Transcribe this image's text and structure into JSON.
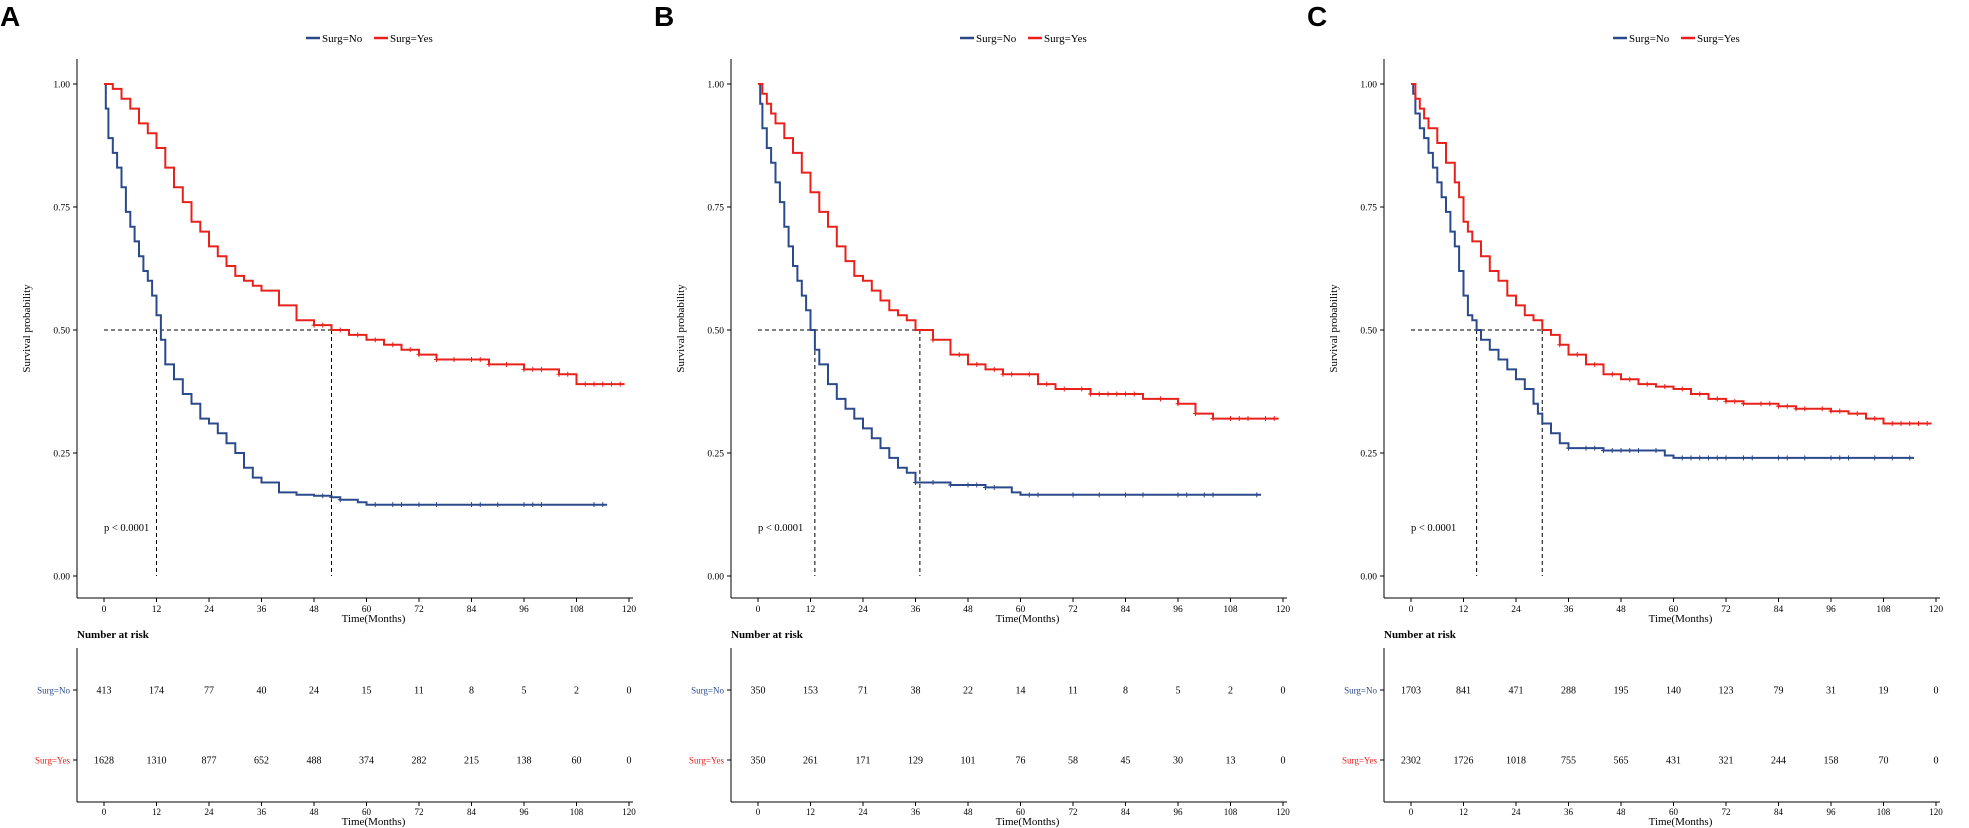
{
  "colors": {
    "no": "#2b4a8b",
    "yes": "#e8221b",
    "axis": "#000000",
    "guide": "#000000"
  },
  "shared": {
    "series_names": [
      "Surg=No",
      "Surg=Yes"
    ],
    "y_label": "Survival probability",
    "x_label": "Time(Months)",
    "y_ticks": [
      "0.00",
      "0.25",
      "0.50",
      "0.75",
      "1.00"
    ],
    "x_ticks": [
      "0",
      "12",
      "24",
      "36",
      "48",
      "60",
      "72",
      "84",
      "96",
      "108",
      "120"
    ],
    "risk_title": "Number at risk"
  },
  "chart_data": [
    {
      "panel": "A",
      "type": "line",
      "title": "",
      "xlabel": "Time(Months)",
      "ylabel": "Survival probability",
      "xlim": [
        0,
        120
      ],
      "ylim": [
        0,
        1
      ],
      "p_value": "p < 0.0001",
      "median_times": [
        12,
        52
      ],
      "series": [
        {
          "name": "Surg=No",
          "x": [
            0,
            0.4,
            1,
            2,
            3,
            4,
            5,
            6,
            7,
            8,
            9,
            10,
            11,
            12,
            13,
            14,
            16,
            18,
            20,
            22,
            24,
            26,
            28,
            30,
            32,
            34,
            36,
            40,
            44,
            48,
            52,
            54,
            58,
            60,
            70,
            80,
            90,
            100,
            110,
            115
          ],
          "y": [
            1,
            0.95,
            0.89,
            0.86,
            0.83,
            0.79,
            0.74,
            0.71,
            0.68,
            0.65,
            0.62,
            0.6,
            0.57,
            0.53,
            0.48,
            0.43,
            0.4,
            0.37,
            0.35,
            0.32,
            0.31,
            0.29,
            0.27,
            0.25,
            0.22,
            0.2,
            0.19,
            0.17,
            0.165,
            0.163,
            0.16,
            0.155,
            0.15,
            0.145,
            0.145,
            0.145,
            0.145,
            0.145,
            0.145,
            0.145
          ],
          "censor_x": [
            50,
            52,
            54,
            62,
            66,
            68,
            72,
            76,
            84,
            86,
            90,
            96,
            98,
            100,
            112,
            114
          ]
        },
        {
          "name": "Surg=Yes",
          "x": [
            0,
            2,
            4,
            6,
            8,
            10,
            12,
            14,
            16,
            18,
            20,
            22,
            24,
            26,
            28,
            30,
            32,
            34,
            36,
            40,
            44,
            48,
            52,
            56,
            60,
            64,
            68,
            72,
            76,
            80,
            84,
            88,
            92,
            96,
            100,
            104,
            108,
            112,
            116,
            119
          ],
          "y": [
            1,
            0.99,
            0.97,
            0.95,
            0.92,
            0.9,
            0.87,
            0.83,
            0.79,
            0.76,
            0.72,
            0.7,
            0.67,
            0.65,
            0.63,
            0.61,
            0.6,
            0.59,
            0.58,
            0.55,
            0.52,
            0.51,
            0.5,
            0.49,
            0.48,
            0.47,
            0.46,
            0.45,
            0.44,
            0.44,
            0.44,
            0.43,
            0.43,
            0.42,
            0.42,
            0.41,
            0.39,
            0.39,
            0.39,
            0.39
          ],
          "censor_x": [
            48,
            50,
            54,
            58,
            62,
            66,
            70,
            72,
            76,
            80,
            84,
            86,
            88,
            92,
            96,
            98,
            100,
            104,
            106,
            110,
            112,
            114,
            116,
            118
          ]
        }
      ],
      "risk_rows": [
        {
          "label": "Surg=No",
          "values": [
            "413",
            "174",
            "77",
            "40",
            "24",
            "15",
            "11",
            "8",
            "5",
            "2",
            "0"
          ]
        },
        {
          "label": "Surg=Yes",
          "values": [
            "1628",
            "1310",
            "877",
            "652",
            "488",
            "374",
            "282",
            "215",
            "138",
            "60",
            "0"
          ]
        }
      ]
    },
    {
      "panel": "B",
      "type": "line",
      "title": "",
      "xlabel": "Time(Months)",
      "ylabel": "Survival probability",
      "xlim": [
        0,
        120
      ],
      "ylim": [
        0,
        1
      ],
      "p_value": "p < 0.0001",
      "median_times": [
        13,
        37
      ],
      "series": [
        {
          "name": "Surg=No",
          "x": [
            0,
            0.5,
            1,
            2,
            3,
            4,
            5,
            6,
            7,
            8,
            9,
            10,
            11,
            12,
            13,
            14,
            16,
            18,
            20,
            22,
            24,
            26,
            28,
            30,
            32,
            34,
            36,
            40,
            44,
            48,
            52,
            56,
            58,
            60,
            70,
            80,
            90,
            100,
            110,
            115
          ],
          "y": [
            1,
            0.96,
            0.91,
            0.87,
            0.84,
            0.8,
            0.76,
            0.71,
            0.67,
            0.63,
            0.6,
            0.57,
            0.54,
            0.5,
            0.46,
            0.43,
            0.39,
            0.36,
            0.34,
            0.32,
            0.3,
            0.28,
            0.26,
            0.24,
            0.22,
            0.21,
            0.19,
            0.19,
            0.185,
            0.185,
            0.18,
            0.18,
            0.17,
            0.165,
            0.165,
            0.165,
            0.165,
            0.165,
            0.165,
            0.165
          ],
          "censor_x": [
            36,
            40,
            44,
            48,
            50,
            52,
            54,
            62,
            64,
            72,
            78,
            84,
            88,
            96,
            98,
            102,
            104,
            114
          ]
        },
        {
          "name": "Surg=Yes",
          "x": [
            0,
            1,
            2,
            3,
            4,
            6,
            8,
            10,
            12,
            14,
            16,
            18,
            20,
            22,
            24,
            26,
            28,
            30,
            32,
            34,
            36,
            40,
            44,
            48,
            52,
            56,
            60,
            64,
            68,
            72,
            76,
            80,
            84,
            88,
            92,
            96,
            100,
            104,
            108,
            112,
            119
          ],
          "y": [
            1,
            0.98,
            0.96,
            0.94,
            0.92,
            0.89,
            0.86,
            0.82,
            0.78,
            0.74,
            0.71,
            0.67,
            0.64,
            0.61,
            0.6,
            0.58,
            0.56,
            0.54,
            0.53,
            0.52,
            0.5,
            0.48,
            0.45,
            0.43,
            0.42,
            0.41,
            0.41,
            0.39,
            0.38,
            0.38,
            0.37,
            0.37,
            0.37,
            0.36,
            0.36,
            0.35,
            0.33,
            0.32,
            0.32,
            0.32,
            0.32
          ],
          "censor_x": [
            40,
            46,
            50,
            54,
            56,
            58,
            62,
            66,
            70,
            74,
            76,
            78,
            80,
            82,
            84,
            86,
            92,
            96,
            100,
            104,
            108,
            110,
            112,
            116,
            118
          ]
        }
      ],
      "risk_rows": [
        {
          "label": "Surg=No",
          "values": [
            "350",
            "153",
            "71",
            "38",
            "22",
            "14",
            "11",
            "8",
            "5",
            "2",
            "0"
          ]
        },
        {
          "label": "Surg=Yes",
          "values": [
            "350",
            "261",
            "171",
            "129",
            "101",
            "76",
            "58",
            "45",
            "30",
            "13",
            "0"
          ]
        }
      ]
    },
    {
      "panel": "C",
      "type": "line",
      "title": "",
      "xlabel": "Time(Months)",
      "ylabel": "Survival probability",
      "xlim": [
        0,
        120
      ],
      "ylim": [
        0,
        1
      ],
      "p_value": "p < 0.0001",
      "median_times": [
        15,
        30
      ],
      "series": [
        {
          "name": "Surg=No",
          "x": [
            0,
            0.5,
            1,
            2,
            3,
            4,
            5,
            6,
            7,
            8,
            9,
            10,
            11,
            12,
            13,
            14,
            15,
            16,
            18,
            20,
            22,
            24,
            26,
            28,
            29,
            30,
            32,
            34,
            36,
            40,
            44,
            48,
            52,
            56,
            58,
            60,
            70,
            80,
            90,
            100,
            115
          ],
          "y": [
            1,
            0.98,
            0.94,
            0.91,
            0.89,
            0.86,
            0.83,
            0.8,
            0.77,
            0.74,
            0.7,
            0.67,
            0.62,
            0.57,
            0.53,
            0.52,
            0.5,
            0.48,
            0.46,
            0.44,
            0.42,
            0.4,
            0.38,
            0.35,
            0.33,
            0.31,
            0.29,
            0.27,
            0.26,
            0.26,
            0.255,
            0.255,
            0.255,
            0.255,
            0.245,
            0.24,
            0.24,
            0.24,
            0.24,
            0.24,
            0.24
          ],
          "censor_x": [
            36,
            40,
            42,
            44,
            46,
            48,
            50,
            52,
            56,
            62,
            64,
            66,
            68,
            70,
            72,
            76,
            78,
            84,
            86,
            90,
            96,
            98,
            100,
            106,
            110,
            114
          ]
        },
        {
          "name": "Surg=Yes",
          "x": [
            0,
            1,
            2,
            3,
            4,
            6,
            8,
            10,
            11,
            12,
            13,
            14,
            16,
            18,
            20,
            22,
            24,
            26,
            28,
            30,
            32,
            34,
            36,
            40,
            44,
            48,
            52,
            56,
            60,
            64,
            68,
            72,
            76,
            80,
            84,
            88,
            92,
            96,
            100,
            104,
            108,
            112,
            119
          ],
          "y": [
            1,
            0.97,
            0.95,
            0.93,
            0.91,
            0.88,
            0.84,
            0.8,
            0.77,
            0.72,
            0.7,
            0.68,
            0.65,
            0.62,
            0.6,
            0.57,
            0.55,
            0.53,
            0.52,
            0.5,
            0.49,
            0.47,
            0.45,
            0.43,
            0.41,
            0.4,
            0.39,
            0.385,
            0.38,
            0.37,
            0.36,
            0.355,
            0.35,
            0.35,
            0.345,
            0.34,
            0.34,
            0.335,
            0.33,
            0.32,
            0.31,
            0.31,
            0.31
          ],
          "censor_x": [
            34,
            38,
            42,
            46,
            50,
            54,
            58,
            62,
            66,
            70,
            72,
            74,
            76,
            80,
            82,
            84,
            86,
            88,
            90,
            94,
            96,
            98,
            102,
            106,
            110,
            112,
            114,
            116,
            118
          ]
        }
      ],
      "risk_rows": [
        {
          "label": "Surg=No",
          "values": [
            "1703",
            "841",
            "471",
            "288",
            "195",
            "140",
            "123",
            "79",
            "31",
            "19",
            "0"
          ]
        },
        {
          "label": "Surg=Yes",
          "values": [
            "2302",
            "1726",
            "1018",
            "755",
            "565",
            "431",
            "321",
            "244",
            "158",
            "70",
            "0"
          ]
        }
      ]
    }
  ]
}
